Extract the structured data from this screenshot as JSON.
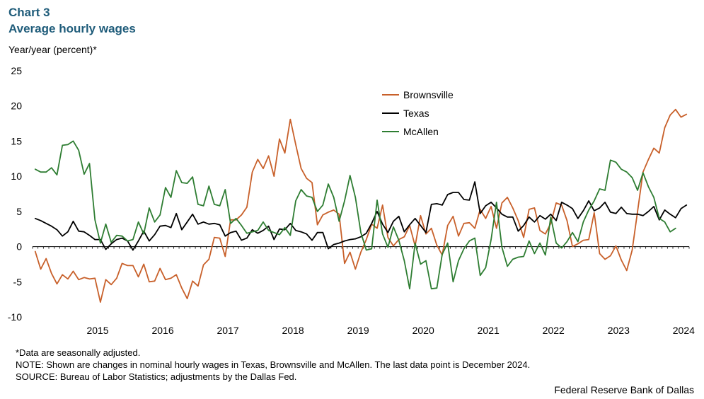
{
  "header": {
    "chart_number": "Chart 3",
    "title": "Average hourly wages"
  },
  "footer": {
    "note_1": "*Data are seasonally adjusted.",
    "note_2": "NOTE: Shown are changes in nominal hourly wages in Texas, Brownsville and McAllen.  The last data point is December 2024.",
    "note_3": "SOURCE: Bureau of Labor Statistics; adjustments by the Dallas Fed.",
    "credit": "Federal Reserve Bank of Dallas"
  },
  "chart_data": {
    "type": "line",
    "title": "Average hourly wages",
    "ylabel": "Year/year  (percent)*",
    "xlabel": "",
    "ylim": [
      -10,
      25
    ],
    "yticks": [
      -10,
      -5,
      0,
      5,
      10,
      15,
      20,
      25
    ],
    "ytick_labels": [
      "-10",
      "-5",
      "0",
      "5",
      "10",
      "15",
      "20",
      "25"
    ],
    "x_start": "Jul 2014",
    "x_end": "Dec 2024",
    "x_tick_labels": [
      "2015",
      "2016",
      "2017",
      "2018",
      "2019",
      "2020",
      "2021",
      "2022",
      "2023",
      "2024"
    ],
    "series": [
      {
        "name": "Brownsville",
        "color": "#c8602a",
        "values": [
          -0.7,
          -3.2,
          -1.7,
          -3.8,
          -5.3,
          -4.0,
          -4.6,
          -3.5,
          -4.7,
          -4.4,
          -4.6,
          -4.5,
          -7.9,
          -4.7,
          -5.4,
          -4.5,
          -2.4,
          -2.7,
          -2.7,
          -4.3,
          -2.5,
          -5.0,
          -4.9,
          -3.1,
          -4.7,
          -4.5,
          -4.0,
          -5.9,
          -7.4,
          -4.9,
          -5.6,
          -2.6,
          -1.8,
          1.3,
          1.2,
          -1.4,
          3.8,
          3.8,
          4.5,
          5.6,
          10.6,
          12.4,
          11.1,
          12.9,
          10.0,
          15.3,
          13.3,
          18.1,
          14.5,
          11.1,
          9.7,
          9.1,
          3.1,
          4.5,
          4.9,
          5.2,
          4.6,
          -2.4,
          -0.8,
          -3.2,
          -0.8,
          1.0,
          3.2,
          2.6,
          5.9,
          1.3,
          0.1,
          1.0,
          1.4,
          3.0,
          0.1,
          4.4,
          1.8,
          2.6,
          0.2,
          -1.2,
          3.0,
          4.3,
          1.5,
          3.3,
          3.4,
          2.6,
          5.3,
          4.0,
          5.7,
          2.6,
          6.2,
          7.0,
          5.5,
          3.7,
          1.3,
          5.3,
          5.5,
          2.3,
          1.8,
          3.3,
          6.2,
          5.9,
          3.7,
          0.0,
          0.4,
          0.9,
          1.0,
          4.8,
          -1.0,
          -1.8,
          -1.3,
          0.1,
          -1.9,
          -3.4,
          -0.5,
          5.0,
          10.6,
          12.4,
          14.0,
          13.3,
          16.9,
          18.7,
          19.5,
          18.4,
          18.8
        ]
      },
      {
        "name": "Texas",
        "color": "#000000",
        "values": [
          4.0,
          3.7,
          3.3,
          2.9,
          2.4,
          1.5,
          2.1,
          3.6,
          2.2,
          2.1,
          1.6,
          1.0,
          1.0,
          -0.4,
          0.4,
          1.0,
          1.2,
          0.8,
          -0.5,
          0.8,
          2.2,
          0.8,
          1.7,
          2.9,
          3.0,
          2.7,
          4.7,
          2.4,
          3.5,
          4.6,
          3.2,
          3.5,
          3.2,
          3.3,
          3.1,
          1.5,
          2.0,
          2.2,
          0.9,
          1.2,
          2.4,
          1.9,
          2.3,
          2.9,
          1.0,
          2.5,
          2.4,
          3.3,
          2.3,
          2.1,
          1.8,
          0.9,
          2.0,
          2.0,
          -0.3,
          0.3,
          0.5,
          0.8,
          1.0,
          1.1,
          1.4,
          1.9,
          3.3,
          5.0,
          3.2,
          2.0,
          3.6,
          4.3,
          2.1,
          3.1,
          4.0,
          3.0,
          2.0,
          6.0,
          6.1,
          5.9,
          7.4,
          7.7,
          7.7,
          6.7,
          6.6,
          9.2,
          4.7,
          5.8,
          6.3,
          5.5,
          4.6,
          4.2,
          4.2,
          2.2,
          3.0,
          4.2,
          3.5,
          4.4,
          3.9,
          4.6,
          3.7,
          6.3,
          5.9,
          5.4,
          4.0,
          5.1,
          6.5,
          5.1,
          5.5,
          6.3,
          4.9,
          4.7,
          5.6,
          4.7,
          4.6,
          4.6,
          4.4,
          5.0,
          5.7,
          3.8,
          5.2,
          4.6,
          4.1,
          5.4,
          5.9
        ]
      },
      {
        "name": "McAllen",
        "color": "#2e7d32",
        "values": [
          11.0,
          10.6,
          10.6,
          11.2,
          10.2,
          14.4,
          14.5,
          15.0,
          13.7,
          10.3,
          11.8,
          3.8,
          0.5,
          3.2,
          0.6,
          1.6,
          1.5,
          0.8,
          1.0,
          3.5,
          1.8,
          5.5,
          3.5,
          4.5,
          8.4,
          7.0,
          10.8,
          9.1,
          9.0,
          9.9,
          6.0,
          5.8,
          8.6,
          6.0,
          5.8,
          8.1,
          3.3,
          4.0,
          3.0,
          1.9,
          2.1,
          2.3,
          3.5,
          2.3,
          2.0,
          1.7,
          2.7,
          1.6,
          6.5,
          8.1,
          7.2,
          7.0,
          5.0,
          5.9,
          8.9,
          7.0,
          3.6,
          6.5,
          10.1,
          7.0,
          2.0,
          -0.5,
          -0.3,
          6.6,
          1.8,
          -0.1,
          2.8,
          0.9,
          -2.0,
          -6.0,
          0.5,
          -2.5,
          -2.0,
          -6.0,
          -5.9,
          -1.1,
          0.5,
          -5.0,
          -2.0,
          -0.3,
          0.8,
          1.2,
          -4.1,
          -3.0,
          1.0,
          6.3,
          -0.1,
          -2.8,
          -1.8,
          -1.5,
          -1.4,
          0.8,
          -1.0,
          0.5,
          -1.2,
          4.2,
          0.5,
          -0.2,
          0.7,
          2.0,
          0.7,
          3.5,
          5.2,
          6.5,
          8.2,
          8.0,
          12.3,
          12.0,
          11.0,
          10.6,
          9.8,
          8.0,
          10.5,
          8.5,
          7.0,
          4.0,
          3.5,
          2.1,
          2.6
        ]
      }
    ],
    "legend": {
      "position": "top-right",
      "entries": [
        "Brownsville",
        "Texas",
        "McAllen"
      ]
    },
    "grid": false
  }
}
